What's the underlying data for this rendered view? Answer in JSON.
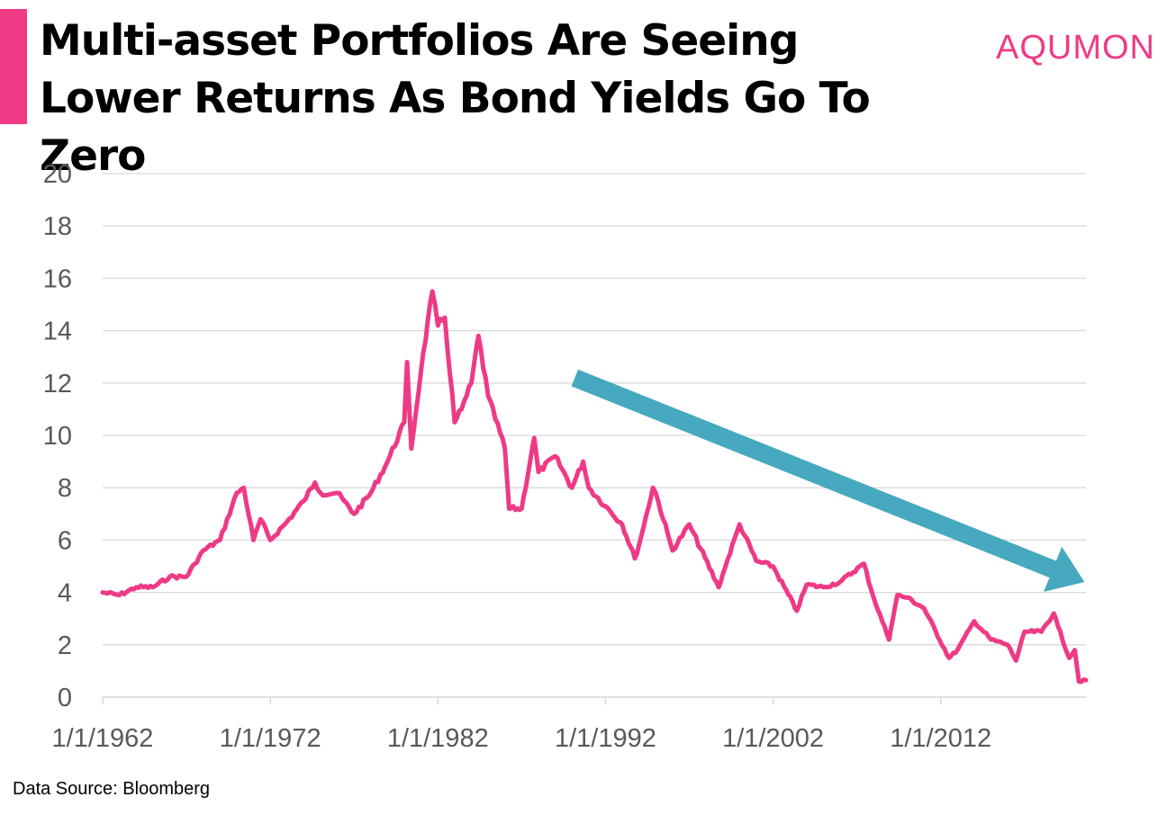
{
  "title": "Multi-asset Portfolios Are Seeing Lower Returns As Bond Yields Go To Zero",
  "logo": "AQUMON",
  "source": "Data Source: Bloomberg",
  "colors": {
    "accent": "#ee3a86",
    "series": "#ee3a86",
    "arrow": "#46a9bf",
    "grid": "#d9d9d9",
    "axis_text": "#595959"
  },
  "chart_data": {
    "type": "line",
    "title": "",
    "xlabel": "",
    "ylabel": "",
    "ylim": [
      0,
      20
    ],
    "yticks": [
      0,
      2,
      4,
      6,
      8,
      10,
      12,
      14,
      16,
      18,
      20
    ],
    "xlim": [
      "1/1/1962",
      "9/1/2020"
    ],
    "xticks": [
      "1/1/1962",
      "1/1/1972",
      "1/1/1982",
      "1/1/1992",
      "1/1/2002",
      "1/1/2012"
    ],
    "grid": true,
    "legend": "none",
    "series": [
      {
        "color": "#ee3a86",
        "x": [
          "1/1/1962",
          "1/1/1963",
          "1/1/1964",
          "1/1/1965",
          "1/1/1966",
          "1/1/1967",
          "7/1/1967",
          "1/1/1968",
          "1/1/1969",
          "1/1/1970",
          "6/1/1970",
          "1/1/1971",
          "6/1/1971",
          "1/1/1972",
          "1/1/1973",
          "1/1/1974",
          "9/1/1974",
          "1/1/1975",
          "1/1/1976",
          "1/1/1977",
          "1/1/1978",
          "1/1/1979",
          "1/1/1980",
          "3/1/1980",
          "6/1/1980",
          "1/1/1981",
          "9/1/1981",
          "1/1/1982",
          "6/1/1982",
          "1/1/1983",
          "6/1/1983",
          "1/1/1984",
          "6/1/1984",
          "1/1/1985",
          "1/1/1986",
          "4/1/1986",
          "1/1/1987",
          "10/1/1987",
          "1/1/1988",
          "1/1/1989",
          "1/1/1990",
          "9/1/1990",
          "1/1/1991",
          "1/1/1992",
          "1/1/1993",
          "10/1/1993",
          "1/1/1994",
          "11/1/1994",
          "1/1/1995",
          "1/1/1996",
          "1/1/1997",
          "10/1/1998",
          "1/1/1999",
          "1/1/2000",
          "1/1/2001",
          "1/1/2002",
          "6/1/2003",
          "1/1/2004",
          "1/1/2005",
          "1/1/2006",
          "6/1/2007",
          "1/1/2008",
          "12/1/2008",
          "1/1/2009",
          "6/1/2009",
          "1/1/2010",
          "1/1/2011",
          "7/1/2012",
          "1/1/2013",
          "1/1/2014",
          "1/1/2015",
          "1/1/2016",
          "7/1/2016",
          "1/1/2017",
          "1/1/2018",
          "10/1/2018",
          "1/1/2019",
          "9/1/2019",
          "1/1/2020",
          "4/1/2020",
          "9/1/2020"
        ],
        "values": [
          4.0,
          3.9,
          4.2,
          4.2,
          4.6,
          4.6,
          5.1,
          5.6,
          6.0,
          7.8,
          8.0,
          6.0,
          6.8,
          6.0,
          6.7,
          7.5,
          8.2,
          7.8,
          7.8,
          7.0,
          7.8,
          9.0,
          10.5,
          12.8,
          9.5,
          12.5,
          15.5,
          14.2,
          14.5,
          10.5,
          11.0,
          12.0,
          13.8,
          11.5,
          9.5,
          7.2,
          7.2,
          9.9,
          8.6,
          9.2,
          8.0,
          9.0,
          8.0,
          7.3,
          6.6,
          5.3,
          5.8,
          8.0,
          7.8,
          5.6,
          6.6,
          4.2,
          4.7,
          6.6,
          5.2,
          5.0,
          3.3,
          4.3,
          4.2,
          4.4,
          5.1,
          3.8,
          2.2,
          2.5,
          3.9,
          3.8,
          3.4,
          1.5,
          1.8,
          2.9,
          2.2,
          2.0,
          1.4,
          2.5,
          2.5,
          3.2,
          2.7,
          1.5,
          1.8,
          0.6,
          0.65
        ]
      }
    ],
    "annotations": [
      {
        "type": "arrow",
        "color": "#46a9bf",
        "from": [
          "3/1/1990",
          12.2
        ],
        "to": [
          "8/1/2020",
          4.4
        ]
      }
    ]
  }
}
